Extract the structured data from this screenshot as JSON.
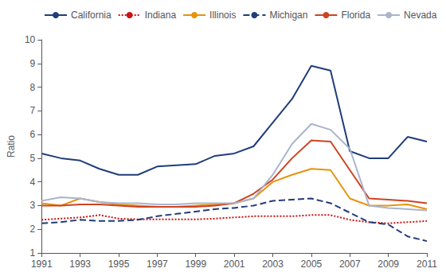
{
  "chart_data": {
    "type": "line",
    "ylabel": "Ratio",
    "x": [
      1991,
      1992,
      1993,
      1994,
      1995,
      1996,
      1997,
      1998,
      1999,
      2000,
      2001,
      2002,
      2003,
      2004,
      2005,
      2006,
      2007,
      2008,
      2009,
      2010,
      2011
    ],
    "series": [
      {
        "name": "California",
        "color": "#1f3d7a",
        "line_style": "solid",
        "values": [
          5.2,
          5.0,
          4.9,
          4.55,
          4.3,
          4.3,
          4.65,
          4.7,
          4.75,
          5.1,
          5.2,
          5.5,
          6.5,
          7.5,
          8.9,
          8.7,
          5.3,
          5.0,
          5.0,
          5.9,
          5.7
        ]
      },
      {
        "name": "Indiana",
        "color": "#cc1111",
        "line_style": "dotted",
        "values": [
          2.4,
          2.45,
          2.5,
          2.6,
          2.45,
          2.42,
          2.42,
          2.42,
          2.42,
          2.45,
          2.5,
          2.55,
          2.55,
          2.55,
          2.6,
          2.6,
          2.4,
          2.3,
          2.25,
          2.3,
          2.35
        ]
      },
      {
        "name": "Illinois",
        "color": "#e8930a",
        "line_style": "solid",
        "values": [
          3.1,
          3.0,
          3.3,
          3.15,
          3.05,
          3.0,
          2.95,
          2.95,
          3.0,
          3.05,
          3.1,
          3.3,
          4.0,
          4.3,
          4.55,
          4.5,
          3.3,
          3.0,
          3.0,
          3.05,
          2.85
        ]
      },
      {
        "name": "Michigan",
        "color": "#1f3d7a",
        "line_style": "dashed",
        "values": [
          2.25,
          2.3,
          2.4,
          2.35,
          2.35,
          2.4,
          2.55,
          2.65,
          2.75,
          2.85,
          2.9,
          3.0,
          3.2,
          3.25,
          3.3,
          3.1,
          2.7,
          2.3,
          2.2,
          1.7,
          1.5
        ]
      },
      {
        "name": "Florida",
        "color": "#cc4422",
        "line_style": "solid",
        "values": [
          3.0,
          3.0,
          3.05,
          3.05,
          3.0,
          2.95,
          2.95,
          2.95,
          2.95,
          3.0,
          3.1,
          3.5,
          4.1,
          5.0,
          5.75,
          5.7,
          4.5,
          3.3,
          3.25,
          3.2,
          3.1
        ]
      },
      {
        "name": "Nevada",
        "color": "#aab4cc",
        "line_style": "solid",
        "values": [
          3.2,
          3.35,
          3.3,
          3.15,
          3.1,
          3.1,
          3.05,
          3.05,
          3.1,
          3.1,
          3.1,
          3.3,
          4.3,
          5.6,
          6.45,
          6.2,
          5.4,
          3.0,
          2.9,
          2.85,
          2.8
        ]
      }
    ],
    "xlim": [
      1991,
      2011
    ],
    "xticks": [
      1991,
      1993,
      1995,
      1997,
      1999,
      2001,
      2003,
      2005,
      2007,
      2009,
      2011
    ],
    "ylim": [
      1,
      10
    ],
    "yticks": [
      1,
      2,
      3,
      4,
      5,
      6,
      7,
      8,
      9,
      10
    ],
    "grid": false,
    "legend": "upper left"
  }
}
